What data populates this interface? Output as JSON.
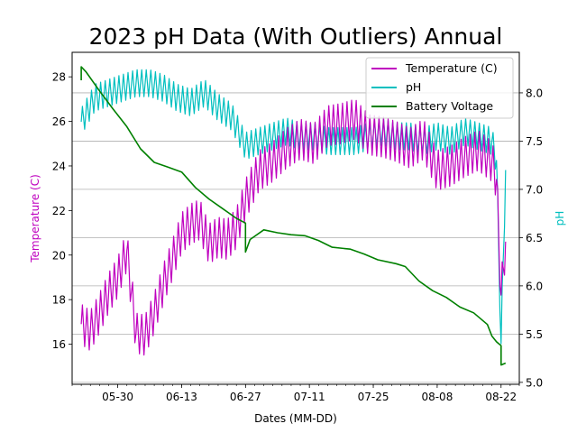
{
  "chart_data": {
    "type": "line",
    "title": "2023 pH Data (With Outliers) Annual",
    "xlabel": "Dates (MM-DD)",
    "ylabel_left": "Temperature (C)",
    "ylabel_right": "pH",
    "grid": "horizontal (right axis)",
    "legend_position": "top-right",
    "x_range": [
      "2023-05-20",
      "2023-08-26"
    ],
    "y_left_range": [
      14.2,
      29.1
    ],
    "y_right_range": [
      4.98,
      8.42
    ],
    "x_ticks": [
      "05-30",
      "06-13",
      "06-27",
      "07-11",
      "07-25",
      "08-08",
      "08-22"
    ],
    "x_tick_dates": [
      "2023-05-30",
      "2023-06-13",
      "2023-06-27",
      "2023-07-11",
      "2023-07-25",
      "2023-08-08",
      "2023-08-22"
    ],
    "y_left_ticks": [
      16,
      18,
      20,
      22,
      24,
      26,
      28
    ],
    "y_right_ticks": [
      5.0,
      5.5,
      6.0,
      6.5,
      7.0,
      7.5,
      8.0
    ],
    "series": [
      {
        "name": "Temperature (C)",
        "axis": "left",
        "color": "#bf00bf",
        "daily_cycle_amplitude": 0.9,
        "points": [
          [
            "2023-05-22",
            16.9
          ],
          [
            "2023-05-24",
            16.6
          ],
          [
            "2023-05-26",
            17.4
          ],
          [
            "2023-05-28",
            18.3
          ],
          [
            "2023-05-30",
            19.0
          ],
          [
            "2023-06-01",
            20.2
          ],
          [
            "2023-06-03",
            16.5
          ],
          [
            "2023-06-05",
            16.4
          ],
          [
            "2023-06-07",
            17.4
          ],
          [
            "2023-06-09",
            18.7
          ],
          [
            "2023-06-11",
            19.8
          ],
          [
            "2023-06-13",
            21.0
          ],
          [
            "2023-06-15",
            21.4
          ],
          [
            "2023-06-17",
            21.6
          ],
          [
            "2023-06-19",
            20.5
          ],
          [
            "2023-06-21",
            20.8
          ],
          [
            "2023-06-23",
            20.7
          ],
          [
            "2023-06-25",
            21.2
          ],
          [
            "2023-06-27",
            22.5
          ],
          [
            "2023-06-30",
            23.8
          ],
          [
            "2023-07-03",
            24.2
          ],
          [
            "2023-07-06",
            24.8
          ],
          [
            "2023-07-09",
            25.2
          ],
          [
            "2023-07-12",
            25.0
          ],
          [
            "2023-07-15",
            25.8
          ],
          [
            "2023-07-18",
            25.9
          ],
          [
            "2023-07-21",
            26.1
          ],
          [
            "2023-07-24",
            25.4
          ],
          [
            "2023-07-27",
            25.3
          ],
          [
            "2023-07-30",
            25.1
          ],
          [
            "2023-08-02",
            24.8
          ],
          [
            "2023-08-05",
            25.2
          ],
          [
            "2023-08-08",
            23.8
          ],
          [
            "2023-08-11",
            24.0
          ],
          [
            "2023-08-14",
            24.4
          ],
          [
            "2023-08-17",
            24.7
          ],
          [
            "2023-08-20",
            24.2
          ],
          [
            "2023-08-21",
            23.4
          ],
          [
            "2023-08-22",
            18.2
          ],
          [
            "2023-08-23",
            20.6
          ]
        ]
      },
      {
        "name": "pH",
        "axis": "right",
        "color": "#00bfbf",
        "daily_cycle_amplitude": 0.14,
        "points": [
          [
            "2023-05-22",
            7.7
          ],
          [
            "2023-05-25",
            7.95
          ],
          [
            "2023-05-28",
            8.0
          ],
          [
            "2023-05-31",
            8.05
          ],
          [
            "2023-06-03",
            8.1
          ],
          [
            "2023-06-06",
            8.1
          ],
          [
            "2023-06-09",
            8.05
          ],
          [
            "2023-06-12",
            7.95
          ],
          [
            "2023-06-15",
            7.9
          ],
          [
            "2023-06-18",
            8.0
          ],
          [
            "2023-06-21",
            7.85
          ],
          [
            "2023-06-24",
            7.75
          ],
          [
            "2023-06-27",
            7.45
          ],
          [
            "2023-06-30",
            7.5
          ],
          [
            "2023-07-03",
            7.55
          ],
          [
            "2023-07-06",
            7.6
          ],
          [
            "2023-07-09",
            7.55
          ],
          [
            "2023-07-12",
            7.55
          ],
          [
            "2023-07-15",
            7.5
          ],
          [
            "2023-07-18",
            7.5
          ],
          [
            "2023-07-21",
            7.5
          ],
          [
            "2023-07-24",
            7.55
          ],
          [
            "2023-07-27",
            7.6
          ],
          [
            "2023-07-30",
            7.55
          ],
          [
            "2023-08-02",
            7.55
          ],
          [
            "2023-08-05",
            7.5
          ],
          [
            "2023-08-08",
            7.55
          ],
          [
            "2023-08-11",
            7.5
          ],
          [
            "2023-08-14",
            7.6
          ],
          [
            "2023-08-17",
            7.55
          ],
          [
            "2023-08-20",
            7.5
          ],
          [
            "2023-08-21",
            7.3
          ],
          [
            "2023-08-22",
            5.4
          ],
          [
            "2023-08-23",
            7.2
          ]
        ]
      },
      {
        "name": "Battery Voltage",
        "axis": "right",
        "color": "#008000",
        "daily_cycle_amplitude": 0.0,
        "points": [
          [
            "2023-05-22",
            8.13
          ],
          [
            "2023-05-22",
            8.27
          ],
          [
            "2023-05-23",
            8.22
          ],
          [
            "2023-05-26",
            8.02
          ],
          [
            "2023-05-29",
            7.83
          ],
          [
            "2023-06-01",
            7.65
          ],
          [
            "2023-06-04",
            7.42
          ],
          [
            "2023-06-07",
            7.28
          ],
          [
            "2023-06-10",
            7.23
          ],
          [
            "2023-06-13",
            7.18
          ],
          [
            "2023-06-16",
            7.02
          ],
          [
            "2023-06-19",
            6.9
          ],
          [
            "2023-06-22",
            6.8
          ],
          [
            "2023-06-25",
            6.7
          ],
          [
            "2023-06-27",
            6.65
          ],
          [
            "2023-06-27",
            6.35
          ],
          [
            "2023-06-28",
            6.48
          ],
          [
            "2023-07-01",
            6.58
          ],
          [
            "2023-07-04",
            6.55
          ],
          [
            "2023-07-07",
            6.53
          ],
          [
            "2023-07-10",
            6.52
          ],
          [
            "2023-07-13",
            6.47
          ],
          [
            "2023-07-16",
            6.4
          ],
          [
            "2023-07-20",
            6.38
          ],
          [
            "2023-07-23",
            6.33
          ],
          [
            "2023-07-26",
            6.27
          ],
          [
            "2023-07-30",
            6.23
          ],
          [
            "2023-08-01",
            6.2
          ],
          [
            "2023-08-04",
            6.05
          ],
          [
            "2023-08-07",
            5.95
          ],
          [
            "2023-08-10",
            5.88
          ],
          [
            "2023-08-13",
            5.78
          ],
          [
            "2023-08-16",
            5.72
          ],
          [
            "2023-08-19",
            5.6
          ],
          [
            "2023-08-20",
            5.48
          ],
          [
            "2023-08-21",
            5.42
          ],
          [
            "2023-08-22",
            5.38
          ],
          [
            "2023-08-22",
            5.18
          ],
          [
            "2023-08-23",
            5.2
          ]
        ]
      }
    ]
  }
}
